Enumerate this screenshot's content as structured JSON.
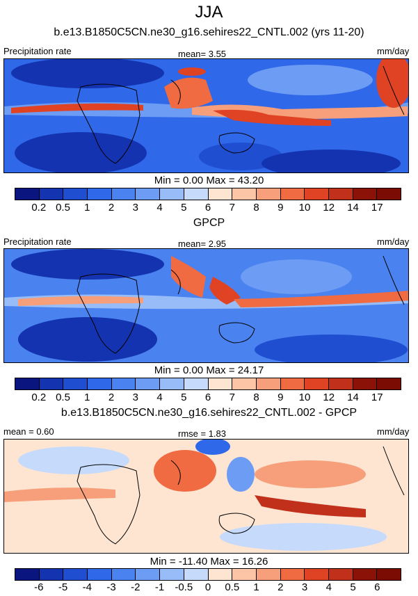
{
  "figure_title": "JJA",
  "panels": [
    {
      "title": "b.e13.B1850C5CN.ne30_g16.sehires22_CNTL.002 (yrs 11-20)",
      "left_label": "Precipitation rate",
      "center_label": "mean=   3.55",
      "units": "mm/day",
      "minmax": "Min =   0.00 Max =  43.20",
      "colorbar": {
        "ticks": [
          "0.2",
          "0.5",
          "1",
          "2",
          "3",
          "4",
          "5",
          "6",
          "7",
          "8",
          "9",
          "10",
          "12",
          "14",
          "17"
        ],
        "colors": [
          "#0a1580",
          "#1433b0",
          "#1f4fd0",
          "#2f68e8",
          "#4a82f0",
          "#6d9cf4",
          "#98bcf7",
          "#c6dbfb",
          "#fde5d2",
          "#fbc5a6",
          "#f79f7a",
          "#f06b42",
          "#e04323",
          "#c1301b",
          "#8a1207",
          "#7a0c04"
        ]
      }
    },
    {
      "title": "GPCP",
      "left_label": "Precipitation rate",
      "center_label": "mean=   2.95",
      "units": "mm/day",
      "minmax": "Min =   0.00 Max =  24.17",
      "colorbar": {
        "ticks": [
          "0.2",
          "0.5",
          "1",
          "2",
          "3",
          "4",
          "5",
          "6",
          "7",
          "8",
          "9",
          "10",
          "12",
          "14",
          "17"
        ],
        "colors": [
          "#0a1580",
          "#1433b0",
          "#1f4fd0",
          "#2f68e8",
          "#4a82f0",
          "#6d9cf4",
          "#98bcf7",
          "#c6dbfb",
          "#fde5d2",
          "#fbc5a6",
          "#f79f7a",
          "#f06b42",
          "#e04323",
          "#c1301b",
          "#8a1207",
          "#7a0c04"
        ]
      }
    },
    {
      "title": "b.e13.B1850C5CN.ne30_g16.sehires22_CNTL.002 - GPCP",
      "left_label": "mean =   0.60",
      "center_label": "rmse =   1.83",
      "units": "mm/day",
      "minmax": "Min = -11.40 Max =  16.26",
      "colorbar": {
        "ticks": [
          "-6",
          "-5",
          "-4",
          "-3",
          "-2",
          "-1",
          "-0.5",
          "0",
          "0.5",
          "1",
          "2",
          "3",
          "4",
          "5",
          "6"
        ],
        "colors": [
          "#0a1580",
          "#1433b0",
          "#1f4fd0",
          "#2f68e8",
          "#4a82f0",
          "#6d9cf4",
          "#98bcf7",
          "#c6dbfb",
          "#fde5d2",
          "#fbc5a6",
          "#f79f7a",
          "#f06b42",
          "#e04323",
          "#c1301b",
          "#8a1207",
          "#7a0c04"
        ]
      }
    }
  ],
  "chart_data": [
    {
      "type": "heatmap",
      "title": "b.e13.B1850C5CN.ne30_g16.sehires22_CNTL.002 (yrs 11-20)",
      "variable": "Precipitation rate",
      "units": "mm/day",
      "mean": 3.55,
      "min": 0.0,
      "max": 43.2,
      "levels": [
        0.2,
        0.5,
        1,
        2,
        3,
        4,
        5,
        6,
        7,
        8,
        9,
        10,
        12,
        14,
        17
      ]
    },
    {
      "type": "heatmap",
      "title": "GPCP",
      "variable": "Precipitation rate",
      "units": "mm/day",
      "mean": 2.95,
      "min": 0.0,
      "max": 24.17,
      "levels": [
        0.2,
        0.5,
        1,
        2,
        3,
        4,
        5,
        6,
        7,
        8,
        9,
        10,
        12,
        14,
        17
      ]
    },
    {
      "type": "heatmap",
      "title": "b.e13.B1850C5CN.ne30_g16.sehires22_CNTL.002 - GPCP",
      "units": "mm/day",
      "mean": 0.6,
      "rmse": 1.83,
      "min": -11.4,
      "max": 16.26,
      "levels": [
        -6,
        -5,
        -4,
        -3,
        -2,
        -1,
        -0.5,
        0,
        0.5,
        1,
        2,
        3,
        4,
        5,
        6
      ]
    }
  ]
}
